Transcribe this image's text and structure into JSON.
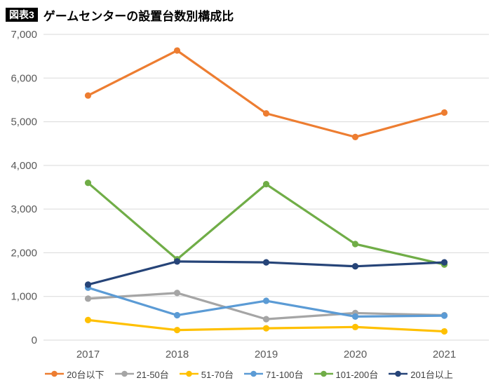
{
  "header": {
    "badge": "図表3",
    "title": "ゲームセンターの設置台数別構成比"
  },
  "chart_data": {
    "type": "line",
    "title": "ゲームセンターの設置台数別構成比",
    "categories": [
      "2017",
      "2018",
      "2019",
      "2020",
      "2021"
    ],
    "ylim": [
      0,
      7000
    ],
    "ytick_interval": 1000,
    "grid": true,
    "legend_position": "bottom",
    "grid_color": "#D9D9D9",
    "series": [
      {
        "name": "20台以下",
        "color": "#ED7D31",
        "values": [
          5600,
          6630,
          5190,
          4650,
          5210
        ]
      },
      {
        "name": "21-50台",
        "color": "#A5A5A5",
        "values": [
          950,
          1080,
          480,
          620,
          570
        ]
      },
      {
        "name": "51-70台",
        "color": "#FFC000",
        "values": [
          460,
          230,
          270,
          300,
          200
        ]
      },
      {
        "name": "71-100台",
        "color": "#5B9BD5",
        "values": [
          1200,
          570,
          900,
          540,
          560
        ]
      },
      {
        "name": "101-200台",
        "color": "#70AD47",
        "values": [
          3600,
          1850,
          3570,
          2200,
          1730
        ]
      },
      {
        "name": "201台以上",
        "color": "#264478",
        "values": [
          1270,
          1800,
          1780,
          1690,
          1780
        ]
      }
    ]
  }
}
